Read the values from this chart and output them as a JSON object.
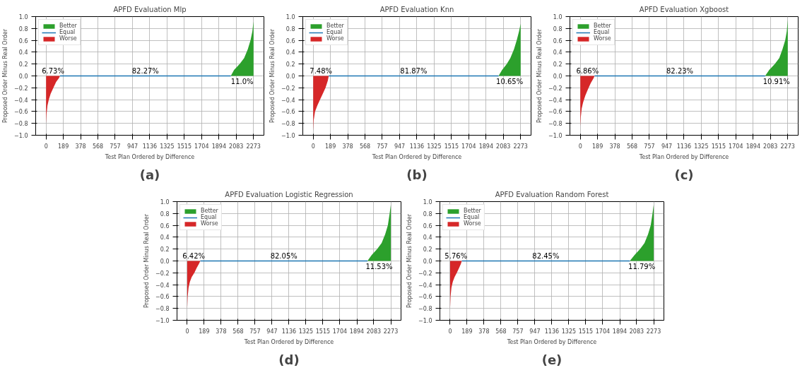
{
  "chart_data": [
    {
      "type": "area",
      "title": "APFD Evaluation Mlp",
      "xlabel": "Test Plan Ordered by Difference",
      "ylabel": "Proposed Order Minus Real Order",
      "xlim": [
        -114,
        2387
      ],
      "ylim": [
        -1.0,
        1.0
      ],
      "xticks": [
        0,
        189,
        378,
        568,
        757,
        947,
        1136,
        1325,
        1515,
        1704,
        1894,
        2083,
        2273
      ],
      "yticks": [
        {
          "value": -1.0,
          "label": "−1.0"
        },
        {
          "value": -0.8,
          "label": "−0.8"
        },
        {
          "value": -0.6,
          "label": "−0.6"
        },
        {
          "value": -0.4,
          "label": "−0.4"
        },
        {
          "value": -0.2,
          "label": "−0.2"
        },
        {
          "value": 0.0,
          "label": "0.0"
        },
        {
          "value": 0.2,
          "label": "0.2"
        },
        {
          "value": 0.4,
          "label": "0.4"
        },
        {
          "value": 0.6,
          "label": "0.6"
        },
        {
          "value": 0.8,
          "label": "0.8"
        },
        {
          "value": 1.0,
          "label": "1.0"
        }
      ],
      "grid": true,
      "legend": "top left",
      "series": [
        {
          "name": "Better",
          "color": "#2ca02c",
          "x": [
            2024,
            2060,
            2120,
            2170,
            2210,
            2240,
            2260,
            2273
          ],
          "values": [
            0,
            0.1,
            0.2,
            0.3,
            0.45,
            0.6,
            0.75,
            0.92
          ]
        },
        {
          "name": "Equal",
          "type": "line",
          "color": "#1f77b4",
          "x": [
            153,
            2024
          ],
          "values": [
            0,
            0
          ]
        },
        {
          "name": "Worse",
          "color": "#d62728",
          "x": [
            0,
            5,
            15,
            30,
            50,
            80,
            110,
            140,
            153
          ],
          "values": [
            -0.8,
            -0.65,
            -0.5,
            -0.4,
            -0.3,
            -0.2,
            -0.1,
            -0.04,
            0
          ]
        }
      ],
      "annotations": [
        "11.0%",
        "82.27%",
        "6.73%",
        "(a)"
      ]
    },
    {
      "type": "area",
      "title": "APFD Evaluation Knn",
      "xlabel": "Test Plan Ordered by Difference",
      "ylabel": "Proposed Order Minus Real Order",
      "xlim": [
        -114,
        2387
      ],
      "ylim": [
        -1.0,
        1.0
      ],
      "xticks": [
        0,
        189,
        378,
        568,
        757,
        947,
        1136,
        1325,
        1515,
        1704,
        1894,
        2083,
        2273
      ],
      "yticks": [
        {
          "value": -1.0,
          "label": "−1.0"
        },
        {
          "value": -0.8,
          "label": "−0.8"
        },
        {
          "value": -0.6,
          "label": "−0.6"
        },
        {
          "value": -0.4,
          "label": "−0.4"
        },
        {
          "value": -0.2,
          "label": "−0.2"
        },
        {
          "value": 0.0,
          "label": "0.0"
        },
        {
          "value": 0.2,
          "label": "0.2"
        },
        {
          "value": 0.4,
          "label": "0.4"
        },
        {
          "value": 0.6,
          "label": "0.6"
        },
        {
          "value": 0.8,
          "label": "0.8"
        },
        {
          "value": 1.0,
          "label": "1.0"
        }
      ],
      "grid": true,
      "legend": "top left",
      "series": [
        {
          "name": "Better",
          "color": "#2ca02c",
          "x": [
            2031,
            2070,
            2120,
            2160,
            2200,
            2230,
            2255,
            2273
          ],
          "values": [
            0,
            0.1,
            0.2,
            0.3,
            0.45,
            0.6,
            0.75,
            0.88
          ]
        },
        {
          "name": "Equal",
          "type": "line",
          "color": "#1f77b4",
          "x": [
            170,
            2031
          ],
          "values": [
            0,
            0
          ]
        },
        {
          "name": "Worse",
          "color": "#d62728",
          "x": [
            0,
            5,
            20,
            45,
            75,
            105,
            135,
            160,
            170
          ],
          "values": [
            -0.93,
            -0.75,
            -0.6,
            -0.5,
            -0.4,
            -0.3,
            -0.2,
            -0.08,
            0
          ]
        }
      ],
      "annotations": [
        "10.65%",
        "81.87%",
        "7.48%",
        "(b)"
      ]
    },
    {
      "type": "area",
      "title": "APFD Evaluation Xgboost",
      "xlabel": "Test Plan Ordered by Difference",
      "ylabel": "Proposed Order Minus Real Order",
      "xlim": [
        -114,
        2387
      ],
      "ylim": [
        -1.0,
        1.0
      ],
      "xticks": [
        0,
        189,
        378,
        568,
        757,
        947,
        1136,
        1325,
        1515,
        1704,
        1894,
        2083,
        2273
      ],
      "yticks": [
        {
          "value": -1.0,
          "label": "−1.0"
        },
        {
          "value": -0.8,
          "label": "−0.8"
        },
        {
          "value": -0.6,
          "label": "−0.6"
        },
        {
          "value": -0.4,
          "label": "−0.4"
        },
        {
          "value": -0.2,
          "label": "−0.2"
        },
        {
          "value": 0.0,
          "label": "0.0"
        },
        {
          "value": 0.2,
          "label": "0.2"
        },
        {
          "value": 0.4,
          "label": "0.4"
        },
        {
          "value": 0.6,
          "label": "0.6"
        },
        {
          "value": 0.8,
          "label": "0.8"
        },
        {
          "value": 1.0,
          "label": "1.0"
        }
      ],
      "grid": true,
      "legend": "top left",
      "series": [
        {
          "name": "Better",
          "color": "#2ca02c",
          "x": [
            2025,
            2070,
            2130,
            2180,
            2215,
            2245,
            2262,
            2273
          ],
          "values": [
            0,
            0.1,
            0.2,
            0.3,
            0.45,
            0.6,
            0.75,
            0.95
          ]
        },
        {
          "name": "Equal",
          "type": "line",
          "color": "#1f77b4",
          "x": [
            156,
            2025
          ],
          "values": [
            0,
            0
          ]
        },
        {
          "name": "Worse",
          "color": "#d62728",
          "x": [
            0,
            5,
            15,
            30,
            55,
            85,
            115,
            145,
            156
          ],
          "values": [
            -0.85,
            -0.7,
            -0.55,
            -0.45,
            -0.33,
            -0.22,
            -0.12,
            -0.04,
            0
          ]
        }
      ],
      "annotations": [
        "10.91%",
        "82.23%",
        "6.86%",
        "(c)"
      ]
    },
    {
      "type": "area",
      "title": "APFD Evaluation Logistic Regression",
      "xlabel": "Test Plan Ordered by Difference",
      "ylabel": "Proposed Order Minus Real Order",
      "xlim": [
        -114,
        2387
      ],
      "ylim": [
        -1.0,
        1.0
      ],
      "xticks": [
        0,
        189,
        378,
        568,
        757,
        947,
        1136,
        1325,
        1515,
        1704,
        1894,
        2083,
        2273
      ],
      "yticks": [
        {
          "value": -1.0,
          "label": "−1.0"
        },
        {
          "value": -0.8,
          "label": "−0.8"
        },
        {
          "value": -0.6,
          "label": "−0.6"
        },
        {
          "value": -0.4,
          "label": "−0.4"
        },
        {
          "value": -0.2,
          "label": "−0.2"
        },
        {
          "value": 0.0,
          "label": "0.0"
        },
        {
          "value": 0.2,
          "label": "0.2"
        },
        {
          "value": 0.4,
          "label": "0.4"
        },
        {
          "value": 0.6,
          "label": "0.6"
        },
        {
          "value": 0.8,
          "label": "0.8"
        },
        {
          "value": 1.0,
          "label": "1.0"
        }
      ],
      "grid": true,
      "legend": "top left",
      "series": [
        {
          "name": "Better",
          "color": "#2ca02c",
          "x": [
            2012,
            2060,
            2120,
            2170,
            2210,
            2240,
            2260,
            2273
          ],
          "values": [
            0,
            0.1,
            0.2,
            0.3,
            0.45,
            0.6,
            0.8,
            0.95
          ]
        },
        {
          "name": "Equal",
          "type": "line",
          "color": "#1f77b4",
          "x": [
            146,
            2012
          ],
          "values": [
            0,
            0
          ]
        },
        {
          "name": "Worse",
          "color": "#d62728",
          "x": [
            0,
            5,
            15,
            30,
            50,
            80,
            105,
            130,
            146
          ],
          "values": [
            -0.8,
            -0.6,
            -0.45,
            -0.35,
            -0.27,
            -0.2,
            -0.12,
            -0.05,
            0
          ]
        }
      ],
      "annotations": [
        "11.53%",
        "82.05%",
        "6.42%",
        "(d)"
      ]
    },
    {
      "type": "area",
      "title": "APFD Evaluation Random Forest",
      "xlabel": "Test Plan Ordered by Difference",
      "ylabel": "Proposed Order Minus Real Order",
      "xlim": [
        -114,
        2387
      ],
      "ylim": [
        -1.0,
        1.0
      ],
      "xticks": [
        0,
        189,
        378,
        568,
        757,
        947,
        1136,
        1325,
        1515,
        1704,
        1894,
        2083,
        2273
      ],
      "yticks": [
        {
          "value": -1.0,
          "label": "−1.0"
        },
        {
          "value": -0.8,
          "label": "−0.8"
        },
        {
          "value": -0.6,
          "label": "−0.6"
        },
        {
          "value": -0.4,
          "label": "−0.4"
        },
        {
          "value": -0.2,
          "label": "−0.2"
        },
        {
          "value": 0.0,
          "label": "0.0"
        },
        {
          "value": 0.2,
          "label": "0.2"
        },
        {
          "value": 0.4,
          "label": "0.4"
        },
        {
          "value": 0.6,
          "label": "0.6"
        },
        {
          "value": 0.8,
          "label": "0.8"
        },
        {
          "value": 1.0,
          "label": "1.0"
        }
      ],
      "grid": true,
      "legend": "top left",
      "series": [
        {
          "name": "Better",
          "color": "#2ca02c",
          "x": [
            2006,
            2060,
            2120,
            2170,
            2210,
            2240,
            2260,
            2273
          ],
          "values": [
            0,
            0.1,
            0.2,
            0.3,
            0.45,
            0.6,
            0.8,
            0.95
          ]
        },
        {
          "name": "Equal",
          "type": "line",
          "color": "#1f77b4",
          "x": [
            131,
            2006
          ],
          "values": [
            0,
            0
          ]
        },
        {
          "name": "Worse",
          "color": "#d62728",
          "x": [
            0,
            5,
            15,
            30,
            50,
            75,
            100,
            120,
            131
          ],
          "values": [
            -0.8,
            -0.6,
            -0.45,
            -0.35,
            -0.27,
            -0.2,
            -0.12,
            -0.05,
            0
          ]
        }
      ],
      "annotations": [
        "11.79%",
        "82.45%",
        "5.76%",
        "(e)"
      ]
    }
  ]
}
